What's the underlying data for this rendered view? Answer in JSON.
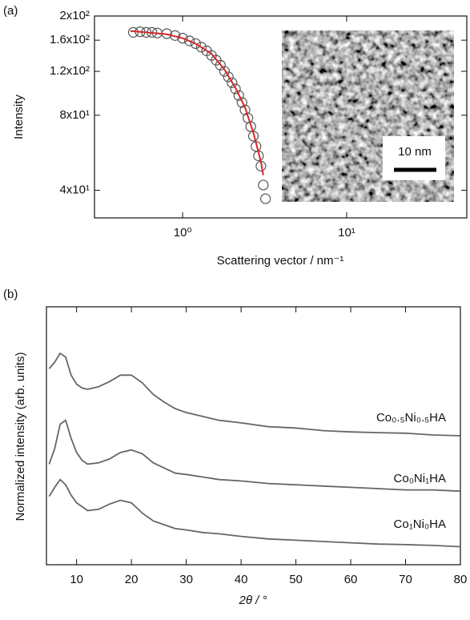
{
  "chart_data": [
    {
      "type": "scatter",
      "panel": "(a)",
      "xlabel": "Scattering vector / nm⁻¹",
      "ylabel": "Intensity",
      "xlog": true,
      "ylog": true,
      "xlim": [
        0.29,
        54
      ],
      "ylim": [
        31,
        200
      ],
      "xticks": [
        {
          "value": 1,
          "label": "10⁰"
        },
        {
          "value": 10,
          "label": "10¹"
        }
      ],
      "yticks": [
        {
          "value": 40,
          "label": "4x10¹"
        },
        {
          "value": 80,
          "label": "8x10¹"
        },
        {
          "value": 120,
          "label": "1.2x10²"
        },
        {
          "value": 160,
          "label": "1.6x10²"
        },
        {
          "value": 200,
          "label": "2x10²"
        }
      ],
      "inset_label": "10 nm",
      "series": [
        {
          "kind": "marker",
          "color": "#555555",
          "x": [
            0.5,
            0.55,
            0.6,
            0.65,
            0.7,
            0.8,
            0.9,
            1.0,
            1.1,
            1.2,
            1.3,
            1.4,
            1.5,
            1.6,
            1.7,
            1.8,
            1.9,
            2.0,
            2.1,
            2.2,
            2.3,
            2.4,
            2.5,
            2.6,
            2.7,
            2.8,
            2.9,
            3.0,
            3.1,
            3.2
          ],
          "values": [
            172,
            173,
            172,
            172,
            171,
            170,
            167,
            163,
            159,
            155,
            150,
            145,
            139,
            133,
            127,
            120,
            114,
            108,
            102,
            96,
            90,
            84,
            78,
            72,
            66,
            60,
            55,
            50,
            42,
            37
          ]
        },
        {
          "kind": "line",
          "color": "#d62728",
          "x": [
            0.48,
            0.6,
            0.8,
            1.0,
            1.2,
            1.5,
            1.8,
            2.1,
            2.4,
            2.7,
            3.0,
            3.1
          ],
          "values": [
            174,
            172,
            169,
            163,
            155,
            141,
            122,
            103,
            86,
            68,
            52,
            46
          ]
        }
      ]
    },
    {
      "type": "line",
      "panel": "(b)",
      "xlabel": "2θ / °",
      "ylabel": "Normalized intensity (arb. units)",
      "xlim": [
        4.5,
        80
      ],
      "ylim": [
        0,
        10
      ],
      "xticks": [
        10,
        20,
        30,
        40,
        50,
        60,
        70,
        80
      ],
      "x": [
        5,
        6,
        7,
        8,
        9,
        10,
        11,
        12,
        14,
        16,
        18,
        20,
        22,
        24,
        26,
        28,
        30,
        33,
        36,
        40,
        45,
        50,
        55,
        60,
        65,
        70,
        75,
        80
      ],
      "series": [
        {
          "name": "Co₀.₅Ni₀.₅HA",
          "color": "#666666",
          "values": [
            7.6,
            7.85,
            8.2,
            8.05,
            7.35,
            7.0,
            6.85,
            6.8,
            6.9,
            7.1,
            7.35,
            7.35,
            7.05,
            6.6,
            6.3,
            6.05,
            5.9,
            5.75,
            5.6,
            5.5,
            5.35,
            5.3,
            5.2,
            5.15,
            5.12,
            5.1,
            5.03,
            5.0
          ]
        },
        {
          "name": "Co₀Ni₁HA",
          "color": "#666666",
          "values": [
            3.9,
            4.5,
            5.45,
            5.6,
            4.9,
            4.35,
            4.05,
            3.9,
            3.95,
            4.1,
            4.35,
            4.45,
            4.3,
            3.95,
            3.75,
            3.55,
            3.5,
            3.4,
            3.3,
            3.25,
            3.15,
            3.1,
            3.05,
            3.0,
            2.95,
            2.9,
            2.9,
            2.85
          ]
        },
        {
          "name": "Co₁Ni₀HA",
          "color": "#666666",
          "values": [
            2.65,
            3.0,
            3.3,
            3.1,
            2.7,
            2.4,
            2.25,
            2.1,
            2.15,
            2.35,
            2.5,
            2.4,
            2.0,
            1.7,
            1.55,
            1.4,
            1.35,
            1.25,
            1.2,
            1.1,
            1.0,
            0.95,
            0.9,
            0.85,
            0.8,
            0.78,
            0.75,
            0.7
          ]
        }
      ]
    }
  ]
}
